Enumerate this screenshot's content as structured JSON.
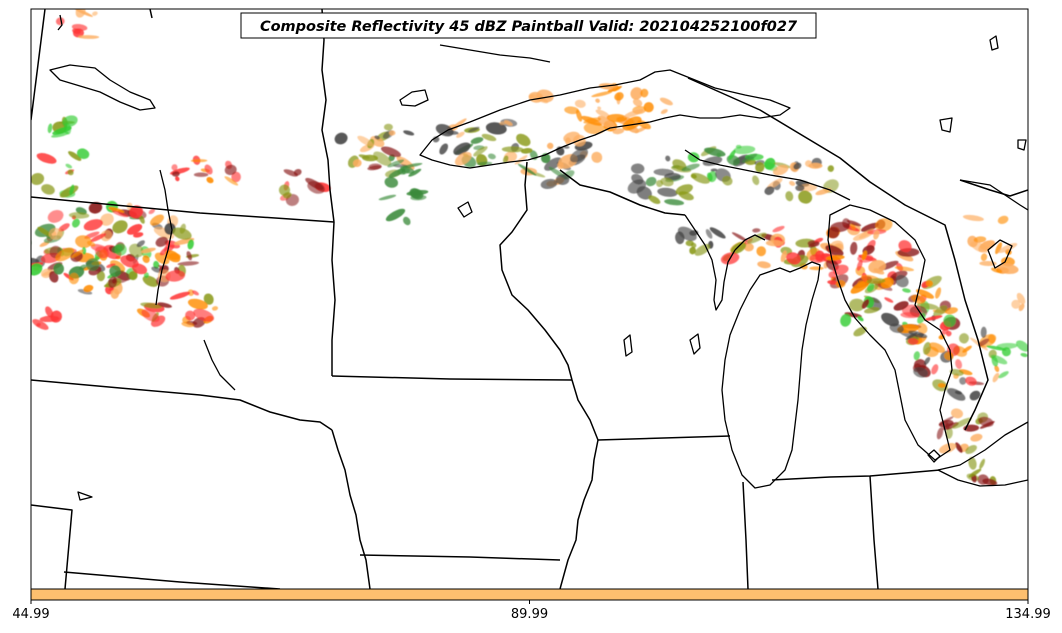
{
  "title": "Composite Reflectivity 45 dBZ Paintball Valid: 202104252100f027",
  "colorbar": {
    "ticks": [
      "44.99",
      "89.99",
      "134.99"
    ],
    "color": "#fdbf6f"
  },
  "palette": {
    "light_green": "#33cc33",
    "dark_green": "#3a8a3a",
    "olive": "#8a9a1a",
    "orange": "#ff8c00",
    "light_orange": "#fdae61",
    "red": "#ff3333",
    "dark_red": "#8b1a1a",
    "gray": "#444444"
  }
}
